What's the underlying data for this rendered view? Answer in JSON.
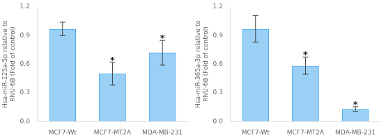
{
  "chart_data": [
    {
      "type": "bar",
      "categories": [
        "MCF7-Wt",
        "MCF7-MT2A",
        "MDA-MB-231"
      ],
      "values": [
        0.97,
        0.5,
        0.72
      ],
      "errors": [
        0.07,
        0.12,
        0.13
      ],
      "ylabel": "Hsa-miR-125a-5p relative to\nRNU-6B (Fold of control)",
      "ylim": [
        0,
        1.2
      ],
      "yticks": [
        {
          "value": 0,
          "label": "0.0"
        },
        0.3,
        0.6,
        0.9,
        1.2
      ],
      "annotations": [
        {
          "category": "MCF7-MT2A",
          "text": "*"
        },
        {
          "category": "MDA-MB-231",
          "text": "*"
        }
      ],
      "grid": false
    },
    {
      "type": "bar",
      "categories": [
        "MCF7-Wt",
        "MCF7-MT2A",
        "MDA-MB-231"
      ],
      "values": [
        0.97,
        0.585,
        0.13
      ],
      "errors": [
        0.14,
        0.09,
        0.025
      ],
      "ylabel": "Hsa-miR-365a-3p relative to\nRNU-6B (Fold of control)",
      "ylim": [
        0,
        1.2
      ],
      "yticks": [
        {
          "value": 0,
          "label": "0.0"
        },
        0.3,
        0.6,
        0.9,
        1.2
      ],
      "annotations": [
        {
          "category": "MCF7-MT2A",
          "text": "*"
        },
        {
          "category": "MDA-MB-231",
          "text": "*"
        }
      ],
      "grid": false
    }
  ]
}
